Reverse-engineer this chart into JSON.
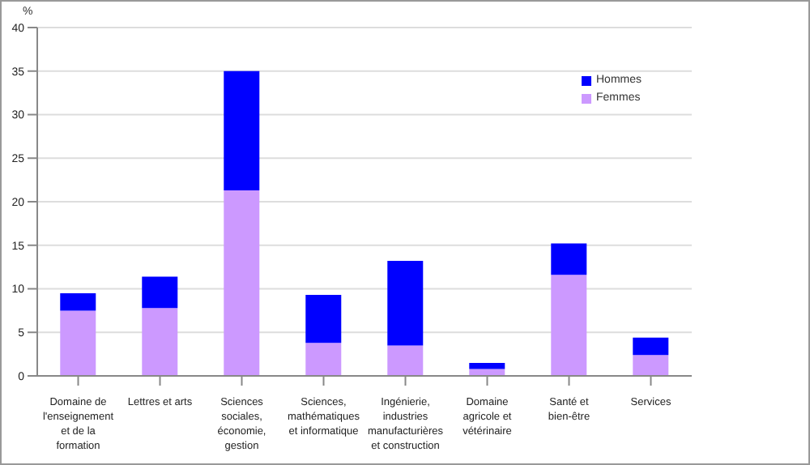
{
  "chart_data": {
    "type": "bar",
    "stacked": true,
    "ylabel": "%",
    "categories": [
      "Domaine de l'enseignement et de la formation",
      "Lettres et arts",
      "Sciences sociales, économie, gestion",
      "Sciences, mathématiques et informatique",
      "Ingénierie, industries manufacturières et construction",
      "Domaine agricole et vétérinaire",
      "Santé et bien-être",
      "Services"
    ],
    "series": [
      {
        "name": "Femmes",
        "color": "#cc99ff",
        "values": [
          7.5,
          7.8,
          21.3,
          3.8,
          3.5,
          0.8,
          11.6,
          2.4
        ]
      },
      {
        "name": "Hommes",
        "color": "#0000ff",
        "values": [
          2.0,
          3.6,
          13.7,
          5.5,
          9.7,
          0.7,
          3.6,
          2.0
        ]
      }
    ],
    "ylim": [
      0,
      40
    ],
    "yticks": [
      0,
      5,
      10,
      15,
      20,
      25,
      30,
      35,
      40
    ],
    "grid": "y",
    "legend": "top right"
  }
}
